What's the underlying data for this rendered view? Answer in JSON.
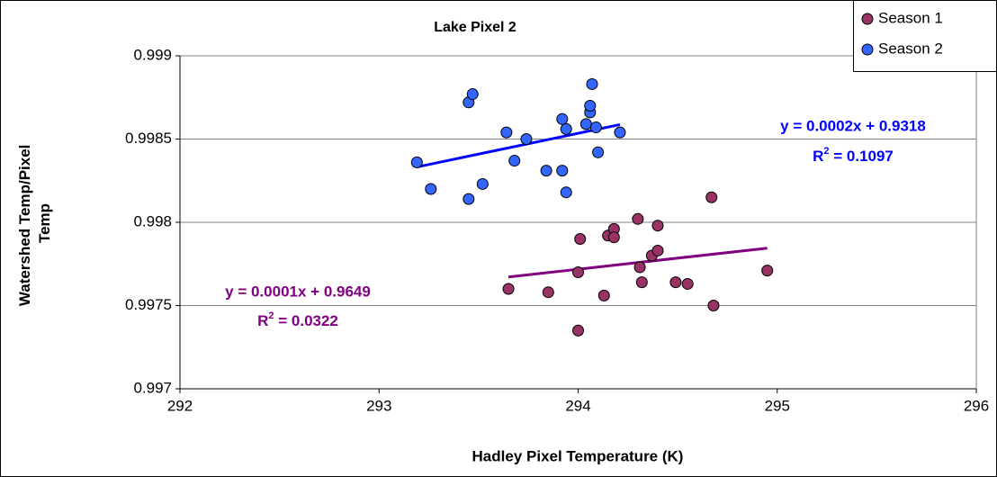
{
  "chart_data": {
    "type": "scatter",
    "title": "Lake Pixel 2",
    "x_label": "Hadley Pixel Temperature (K)",
    "y_label_lines": [
      "Watershed Temp/Pixel",
      "Temp"
    ],
    "xlim": [
      292,
      296
    ],
    "xticks": [
      292,
      293,
      294,
      295,
      296
    ],
    "ylim": [
      0.997,
      0.999
    ],
    "yticks": [
      0.997,
      0.9975,
      0.998,
      0.9985,
      0.999
    ],
    "grid": true,
    "legend": "top-right",
    "series": [
      {
        "name": "Season 1",
        "color": "#993366",
        "trendline_color": "#800080",
        "x": [
          293.65,
          293.85,
          294.0,
          294.01,
          294.0,
          294.13,
          294.15,
          294.18,
          294.18,
          294.3,
          294.31,
          294.32,
          294.37,
          294.4,
          294.4,
          294.49,
          294.55,
          294.68,
          294.67,
          294.95
        ],
        "values": [
          0.9976,
          0.99758,
          0.9977,
          0.9979,
          0.99735,
          0.99756,
          0.99792,
          0.99796,
          0.99791,
          0.99802,
          0.99773,
          0.99764,
          0.9978,
          0.99783,
          0.99798,
          0.99764,
          0.99763,
          0.9975,
          0.99815,
          0.99771
        ],
        "equation": "y = 0.0001x + 0.9649",
        "r_squared": {
          "symbol": "R",
          "power": "2",
          "value": " = 0.0322"
        }
      },
      {
        "name": "Season 2",
        "color": "#3366ff",
        "trendline_color": "#0000ff",
        "x": [
          293.19,
          293.26,
          293.45,
          293.47,
          293.45,
          293.52,
          293.64,
          293.68,
          293.74,
          293.84,
          293.92,
          293.92,
          293.94,
          293.94,
          294.04,
          294.06,
          294.06,
          294.09,
          294.1,
          294.21,
          294.07
        ],
        "values": [
          0.99836,
          0.9982,
          0.99872,
          0.99877,
          0.99814,
          0.99823,
          0.99854,
          0.99837,
          0.9985,
          0.99831,
          0.99862,
          0.99831,
          0.99856,
          0.99818,
          0.99859,
          0.99866,
          0.9987,
          0.99857,
          0.99842,
          0.99854,
          0.99883
        ],
        "equation": "y = 0.0002x + 0.9318",
        "r_squared": {
          "symbol": "R",
          "power": "2",
          "value": " = 0.1097"
        }
      }
    ]
  }
}
